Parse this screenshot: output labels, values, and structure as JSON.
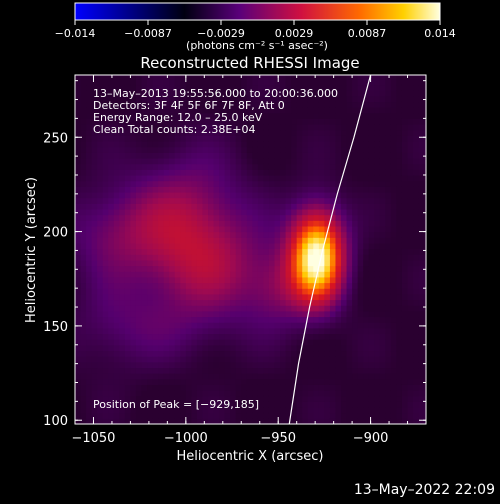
{
  "chart_data": {
    "type": "heatmap",
    "title": "Reconstructed RHESSI Image",
    "xlabel": "Heliocentric X (arcsec)",
    "ylabel": "Heliocentric Y (arcsec)",
    "xlim": [
      -1060,
      -870
    ],
    "ylim": [
      98,
      283
    ],
    "xticks": [
      -1050,
      -1000,
      -950,
      -900
    ],
    "yticks": [
      100,
      150,
      200,
      250
    ],
    "colorbar": {
      "label": "(photons cm⁻² s⁻¹ asec⁻²)",
      "ticks": [
        "−0.014",
        "−0.0087",
        "−0.0029",
        "0.0029",
        "0.0087",
        "0.014"
      ],
      "range": [
        -0.014,
        0.014
      ],
      "colormap": [
        "#0000ff",
        "#000000",
        "#7a0080",
        "#d01040",
        "#ff6a00",
        "#ffd000",
        "#ffffe0"
      ]
    },
    "annotations": [
      "13–May–2013 19:55:56.000 to 20:00:36.000",
      "Detectors: 3F 4F 5F 6F 7F 8F, Att 0",
      "Energy Range: 12.0 – 25.0 keV",
      "Clean    Total counts: 2.38E+04"
    ],
    "peak_label": "Position of Peak = [−929,185]",
    "peak": {
      "x": -929,
      "y": 185
    },
    "sources": [
      {
        "x": -929,
        "y": 187,
        "sx": 10,
        "sy": 17,
        "amp": 1.0
      },
      {
        "x": -1000,
        "y": 205,
        "sx": 22,
        "sy": 24,
        "amp": 0.32
      },
      {
        "x": -1040,
        "y": 200,
        "sx": 18,
        "sy": 16,
        "amp": 0.18
      },
      {
        "x": -985,
        "y": 180,
        "sx": 25,
        "sy": 18,
        "amp": 0.2
      },
      {
        "x": -950,
        "y": 170,
        "sx": 12,
        "sy": 14,
        "amp": 0.18
      },
      {
        "x": -1010,
        "y": 150,
        "sx": 30,
        "sy": 14,
        "amp": 0.1
      },
      {
        "x": -1040,
        "y": 150,
        "sx": 15,
        "sy": 20,
        "amp": 0.08
      }
    ],
    "limb": [
      [
        -944,
        98
      ],
      [
        -939,
        130
      ],
      [
        -933,
        160
      ],
      [
        -926,
        190
      ],
      [
        -918,
        220
      ],
      [
        -909,
        250
      ],
      [
        -900,
        283
      ]
    ]
  },
  "footer_timestamp": "13–May–2022 22:09"
}
